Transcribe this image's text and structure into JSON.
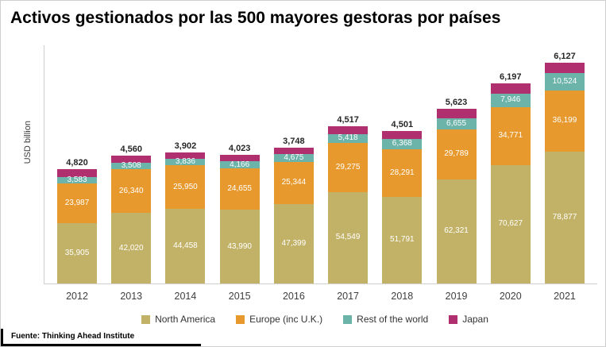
{
  "title": "Activos gestionados por las 500 mayores gestoras por países",
  "source": "Fuente: Thinking Ahead Institute",
  "ylabel": "USD billion",
  "colors": {
    "north_america": "#c2b267",
    "europe": "#e8992d",
    "rest_of_world": "#6cb3a9",
    "japan": "#b02f6e"
  },
  "legend": [
    {
      "label": "North America",
      "key": "north_america"
    },
    {
      "label": "Europe (inc U.K.)",
      "key": "europe"
    },
    {
      "label": "Rest of the world",
      "key": "rest_of_world"
    },
    {
      "label": "Japan",
      "key": "japan"
    }
  ],
  "chart_data": {
    "type": "bar",
    "stacked": true,
    "title": "Activos gestionados por las 500 mayores gestoras por países",
    "ylabel": "USD billion",
    "grid": false,
    "legend_position": "bottom",
    "value_label_format": "thousands-comma",
    "categories": [
      "2012",
      "2013",
      "2014",
      "2015",
      "2016",
      "2017",
      "2018",
      "2019",
      "2020",
      "2021"
    ],
    "series": [
      {
        "name": "North America",
        "key": "north_america",
        "values": [
          35905,
          42020,
          44458,
          43990,
          47399,
          54549,
          51791,
          62321,
          70627,
          78877
        ]
      },
      {
        "name": "Europe (inc U.K.)",
        "key": "europe",
        "values": [
          23987,
          26340,
          25950,
          24655,
          25344,
          29275,
          28291,
          29789,
          34771,
          36199
        ]
      },
      {
        "name": "Rest of the world",
        "key": "rest_of_world",
        "values": [
          3583,
          3508,
          3836,
          4166,
          4675,
          5418,
          6368,
          6655,
          7946,
          10524
        ]
      },
      {
        "name": "Japan",
        "key": "japan",
        "values": [
          4820,
          4560,
          3902,
          4023,
          3748,
          4517,
          4501,
          5623,
          6197,
          6127
        ]
      }
    ]
  }
}
